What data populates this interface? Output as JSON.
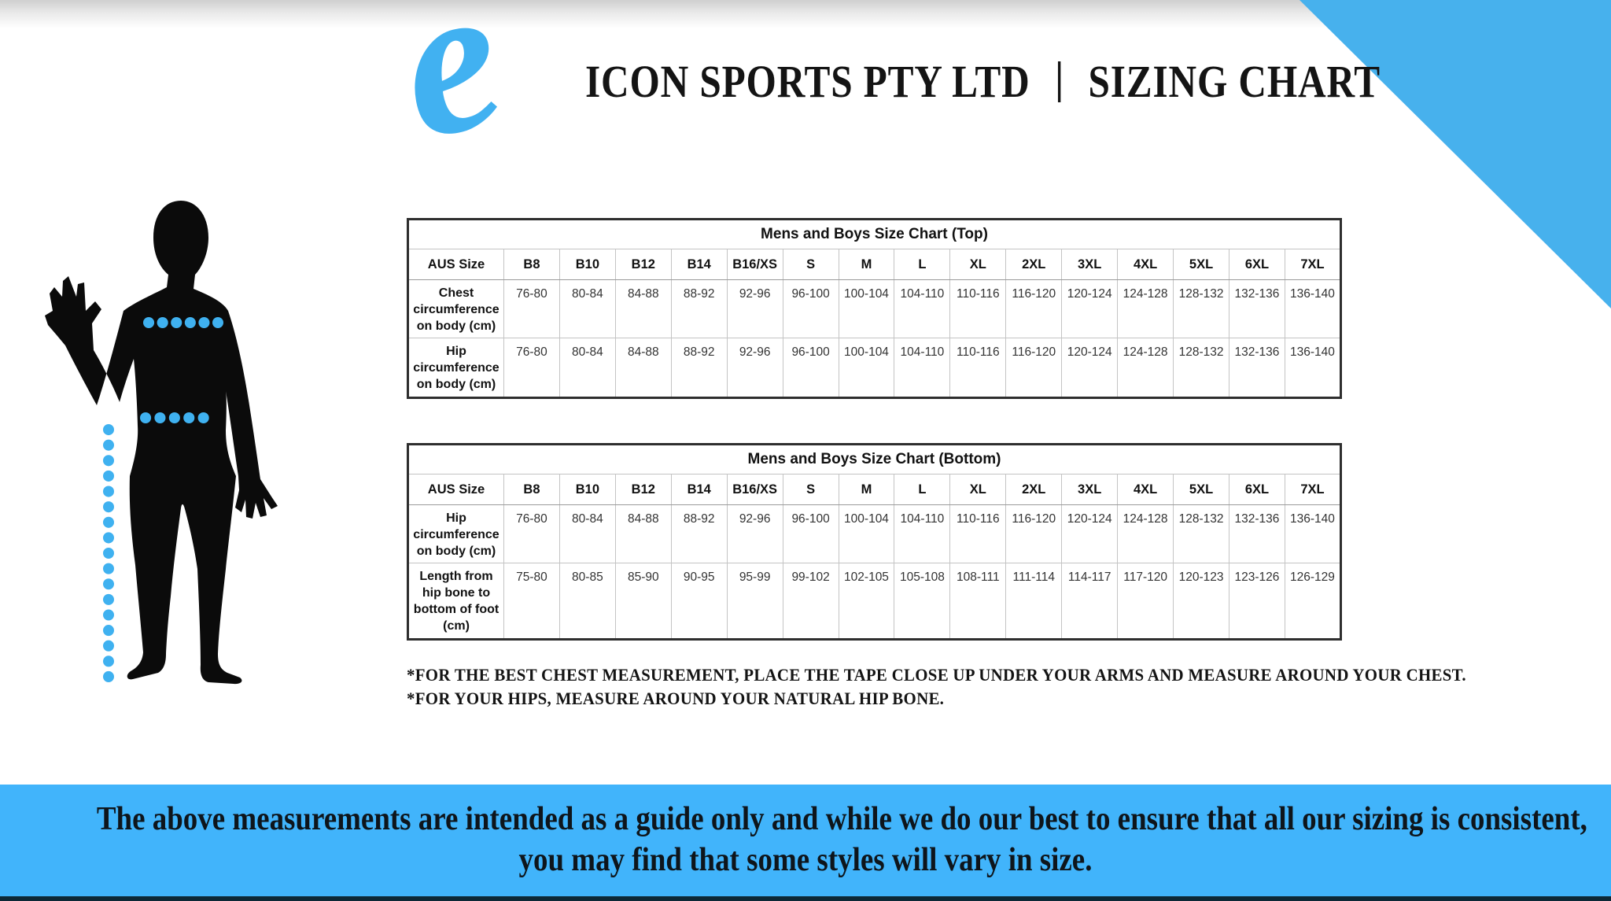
{
  "header": {
    "logo_letter": "e",
    "company": "ICON SPORTS PTY LTD",
    "separator": "|",
    "document_title": "SIZING CHART"
  },
  "size_labels": [
    "B8",
    "B10",
    "B12",
    "B14",
    "B16/XS",
    "S",
    "M",
    "L",
    "XL",
    "2XL",
    "3XL",
    "4XL",
    "5XL",
    "6XL",
    "7XL"
  ],
  "tables": [
    {
      "title": "Mens and Boys Size Chart (Top)",
      "corner_label": "AUS Size",
      "rows": [
        {
          "label": "Chest circumference on body (cm)",
          "values": [
            "76-80",
            "80-84",
            "84-88",
            "88-92",
            "92-96",
            "96-100",
            "100-104",
            "104-110",
            "110-116",
            "116-120",
            "120-124",
            "124-128",
            "128-132",
            "132-136",
            "136-140"
          ]
        },
        {
          "label": "Hip circumference on body (cm)",
          "values": [
            "76-80",
            "80-84",
            "84-88",
            "88-92",
            "92-96",
            "96-100",
            "100-104",
            "104-110",
            "110-116",
            "116-120",
            "120-124",
            "124-128",
            "128-132",
            "132-136",
            "136-140"
          ]
        }
      ]
    },
    {
      "title": "Mens and Boys Size Chart (Bottom)",
      "corner_label": "AUS Size",
      "rows": [
        {
          "label": "Hip circumference on body (cm)",
          "values": [
            "76-80",
            "80-84",
            "84-88",
            "88-92",
            "92-96",
            "96-100",
            "100-104",
            "104-110",
            "110-116",
            "116-120",
            "120-124",
            "124-128",
            "128-132",
            "132-136",
            "136-140"
          ]
        },
        {
          "label": "Length from hip bone to bottom of foot (cm)",
          "values": [
            "75-80",
            "80-85",
            "85-90",
            "90-95",
            "95-99",
            "99-102",
            "102-105",
            "105-108",
            "108-111",
            "111-114",
            "114-117",
            "117-120",
            "120-123",
            "123-126",
            "126-129"
          ]
        }
      ]
    }
  ],
  "footnotes": [
    "*FOR THE BEST CHEST MEASUREMENT, PLACE THE TAPE CLOSE UP UNDER YOUR ARMS AND MEASURE AROUND YOUR CHEST.",
    "*FOR YOUR HIPS, MEASURE AROUND YOUR NATURAL HIP BONE.",
    "The above measurements are intended as a guide only and while we do our best to ensure that all our sizing is consistent,",
    "you may find that some styles will vary in size."
  ],
  "banner": {
    "line1": "The above measurements are intended as a guide only and while we do our best to ensure that all our sizing is consistent,",
    "line2": "you may find that some styles will vary in size."
  },
  "colors": {
    "accent_blue": "#47B1ED",
    "banner_blue": "#41B4FB",
    "measure_dot_blue": "#3FB1F0",
    "banner_bottom_strip": "#0C2836",
    "silhouette_black": "#0B0B0B",
    "text_dark": "#141414"
  }
}
